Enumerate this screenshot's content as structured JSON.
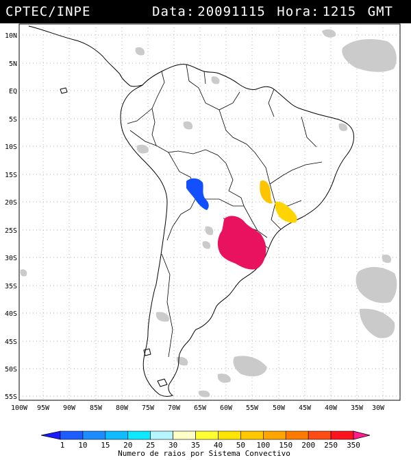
{
  "header": {
    "source": "CPTEC/INPE",
    "date_label": "Data:",
    "date_value": "20091115",
    "time_label": "Hora:",
    "time_value": "1215",
    "timezone": "GMT",
    "background": "#000000",
    "text_color": "#ffffff"
  },
  "map": {
    "lat_labels": [
      "10N",
      "5N",
      "EQ",
      "5S",
      "10S",
      "15S",
      "20S",
      "25S",
      "30S",
      "35S",
      "40S",
      "45S",
      "50S",
      "55S"
    ],
    "lon_labels": [
      "100W",
      "95W",
      "90W",
      "85W",
      "80W",
      "75W",
      "70W",
      "65W",
      "60W",
      "55W",
      "50W",
      "45W",
      "40W",
      "35W",
      "30W"
    ],
    "gridline_style": "dotted",
    "cloud_color": "#c8c8c8",
    "systems": [
      {
        "id": "system-bolivia",
        "color": "#1250ff",
        "intensity": "10"
      },
      {
        "id": "system-central-brazil",
        "color": "#ffc400",
        "intensity": "50"
      },
      {
        "id": "system-southeast-brazil",
        "color": "#ffd400",
        "intensity": "50"
      },
      {
        "id": "system-south",
        "color": "#e8125e",
        "intensity": "350"
      }
    ]
  },
  "colorbar": {
    "title": "Numero de raios por Sistema Convectivo",
    "labels": [
      "1",
      "10",
      "15",
      "20",
      "25",
      "30",
      "35",
      "40",
      "50",
      "100",
      "150",
      "200",
      "250",
      "350"
    ],
    "colors": [
      "#1a1aff",
      "#1d5cff",
      "#1c8cff",
      "#10bcff",
      "#10e8ff",
      "#b4f5ff",
      "#ffffc8",
      "#ffff32",
      "#ffe600",
      "#ffc800",
      "#ffa500",
      "#ff7a00",
      "#ff4b14",
      "#ff141e",
      "#ff1f8c"
    ]
  }
}
